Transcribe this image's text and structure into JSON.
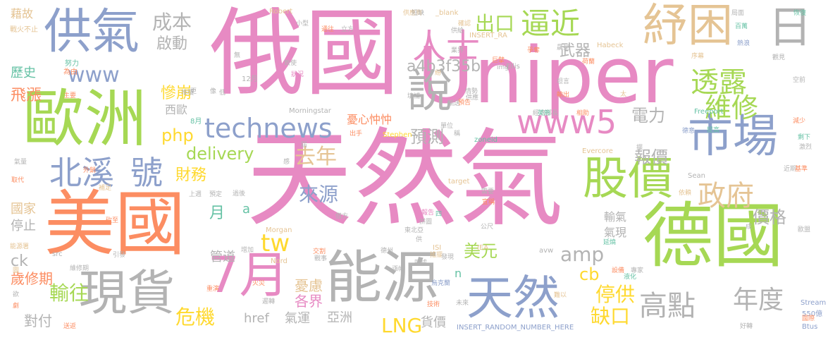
{
  "palette": {
    "pink": "#e78ac3",
    "green": "#a6d854",
    "blue": "#8da0cb",
    "orange": "#fc8d62",
    "teal": "#66c2a5",
    "gray": "#b3b3b3",
    "yellow": "#ffd92f",
    "tan": "#e5c494"
  },
  "words": [
    {
      "text": "天然氣",
      "color": "pink"
    },
    {
      "text": "俄國",
      "color": "pink"
    },
    {
      "text": "Uniper",
      "color": "pink"
    },
    {
      "text": "美國",
      "color": "orange"
    },
    {
      "text": "德國",
      "color": "green"
    },
    {
      "text": "歐洲",
      "color": "green"
    },
    {
      "text": "供氣",
      "color": "blue"
    },
    {
      "text": "能源",
      "color": "gray"
    },
    {
      "text": "現貨",
      "color": "gray"
    },
    {
      "text": "紓困",
      "color": "tan"
    },
    {
      "text": "天然",
      "color": "blue"
    },
    {
      "text": "市場",
      "color": "blue"
    },
    {
      "text": "股價",
      "color": "green"
    },
    {
      "text": "7月",
      "color": "pink"
    },
    {
      "text": "日",
      "color": "gray"
    },
    {
      "text": "說",
      "color": "gray"
    },
    {
      "text": "北溪",
      "color": "blue"
    },
    {
      "text": "號",
      "color": "blue"
    },
    {
      "text": "www5",
      "color": "pink"
    },
    {
      "text": "technews",
      "color": "blue"
    },
    {
      "text": "www",
      "color": "blue"
    },
    {
      "text": "逼近",
      "color": "green"
    },
    {
      "text": "人士",
      "color": "pink"
    },
    {
      "text": "出口",
      "color": "green"
    },
    {
      "text": "政府",
      "color": "tan"
    },
    {
      "text": "高點",
      "color": "gray"
    },
    {
      "text": "年度",
      "color": "gray"
    },
    {
      "text": "維修",
      "color": "green"
    },
    {
      "text": "透露",
      "color": "green"
    },
    {
      "text": "成本",
      "color": "gray"
    },
    {
      "text": "去年",
      "color": "tan"
    },
    {
      "text": "來源",
      "color": "blue"
    },
    {
      "text": "delivery",
      "color": "green"
    },
    {
      "text": "tw",
      "color": "yellow"
    },
    {
      "text": "amp",
      "color": "gray"
    },
    {
      "text": "LNG",
      "color": "yellow"
    },
    {
      "text": "php",
      "color": "yellow"
    },
    {
      "text": "a4b3f35b",
      "color": "gray"
    },
    {
      "text": "停供",
      "color": "yellow"
    },
    {
      "text": "缺口",
      "color": "yellow"
    },
    {
      "text": "輸往",
      "color": "green"
    },
    {
      "text": "危機",
      "color": "yellow"
    },
    {
      "text": "價格",
      "color": "gray"
    },
    {
      "text": "報價",
      "color": "gray"
    },
    {
      "text": "電力",
      "color": "gray"
    },
    {
      "text": "預測",
      "color": "gray"
    },
    {
      "text": "美元",
      "color": "green"
    },
    {
      "text": "財務",
      "color": "yellow"
    },
    {
      "text": "慘崩",
      "color": "yellow"
    },
    {
      "text": "武器",
      "color": "gray"
    },
    {
      "text": "啟動",
      "color": "gray"
    },
    {
      "text": "飛漲",
      "color": "orange"
    },
    {
      "text": "歷史",
      "color": "teal"
    },
    {
      "text": "藉故",
      "color": "tan"
    },
    {
      "text": "cb",
      "color": "yellow"
    },
    {
      "text": "ck",
      "color": "gray"
    },
    {
      "text": "歲修期",
      "color": "orange"
    },
    {
      "text": "對付",
      "color": "gray"
    },
    {
      "text": "各界",
      "color": "pink"
    },
    {
      "text": "憂慮",
      "color": "tan"
    },
    {
      "text": "管道",
      "color": "gray"
    },
    {
      "text": "月",
      "color": "teal"
    },
    {
      "text": "a",
      "color": "teal"
    },
    {
      "text": "氣運",
      "color": "gray"
    },
    {
      "text": "亞洲",
      "color": "gray"
    },
    {
      "text": "貨價",
      "color": "gray"
    },
    {
      "text": "href",
      "color": "gray"
    },
    {
      "text": "停止",
      "color": "gray"
    },
    {
      "text": "國家",
      "color": "tan"
    },
    {
      "text": "西歐",
      "color": "gray"
    },
    {
      "text": "憂心忡忡",
      "color": "orange"
    },
    {
      "text": "輸氣",
      "color": "gray"
    },
    {
      "text": "氣現",
      "color": "gray"
    },
    {
      "text": "n",
      "color": "teal"
    },
    {
      "text": "戰火不止",
      "color": "tan"
    },
    {
      "text": "Robert",
      "color": "tan"
    },
    {
      "text": "_blank",
      "color": "tan"
    },
    {
      "text": "INSERT_RA",
      "color": "tan"
    },
    {
      "text": "Habeck",
      "color": "tan"
    },
    {
      "text": "Morningstar",
      "color": "gray"
    },
    {
      "text": "Freeport",
      "color": "teal"
    },
    {
      "text": "Stephen",
      "color": "yellow"
    },
    {
      "text": "zoneid",
      "color": "teal"
    },
    {
      "text": "Evercore",
      "color": "tan"
    },
    {
      "text": "Sean",
      "color": "gray"
    },
    {
      "text": "target",
      "color": "tan"
    },
    {
      "text": "Morgan",
      "color": "tan"
    },
    {
      "text": "Nord",
      "color": "tan"
    },
    {
      "text": "src",
      "color": "gray"
    },
    {
      "text": "IEA",
      "color": "tan"
    },
    {
      "text": "ISI",
      "color": "tan"
    },
    {
      "text": "avw",
      "color": "gray"
    },
    {
      "text": "Ellis",
      "color": "gray"
    },
    {
      "text": "INSERT_RANDOM_NUMBER_HERE",
      "color": "blue"
    },
    {
      "text": "Stream",
      "color": "blue"
    },
    {
      "text": "550億",
      "color": "blue"
    },
    {
      "text": "Btus",
      "color": "blue"
    },
    {
      "text": "國際",
      "color": "orange"
    },
    {
      "text": "12月",
      "color": "gray"
    },
    {
      "text": "8月",
      "color": "teal"
    },
    {
      "text": "努力",
      "color": "teal"
    },
    {
      "text": "為由",
      "color": "orange"
    },
    {
      "text": "主要",
      "color": "orange"
    },
    {
      "text": "外銷",
      "color": "orange"
    },
    {
      "text": "取代",
      "color": "orange"
    },
    {
      "text": "補足",
      "color": "tan"
    },
    {
      "text": "上週",
      "color": "gray"
    },
    {
      "text": "預定",
      "color": "gray"
    },
    {
      "text": "過後",
      "color": "gray"
    },
    {
      "text": "砍至",
      "color": "orange"
    },
    {
      "text": "引發",
      "color": "gray"
    },
    {
      "text": "能源署",
      "color": "tan"
    },
    {
      "text": "維修期",
      "color": "gray"
    },
    {
      "text": "送返",
      "color": "orange"
    },
    {
      "text": "增加",
      "color": "gray"
    },
    {
      "text": "戰事",
      "color": "gray"
    },
    {
      "text": "火災",
      "color": "orange"
    },
    {
      "text": "重演",
      "color": "orange"
    },
    {
      "text": "遲轉",
      "color": "gray"
    },
    {
      "text": "德州",
      "color": "gray"
    },
    {
      "text": "四成",
      "color": "gray"
    },
    {
      "text": "烏克蘭",
      "color": "blue"
    },
    {
      "text": "技術",
      "color": "orange"
    },
    {
      "text": "未來",
      "color": "gray"
    },
    {
      "text": "交割",
      "color": "orange"
    },
    {
      "text": "漲幅",
      "color": "gray"
    },
    {
      "text": "需要",
      "color": "gray"
    },
    {
      "text": "宣稱",
      "color": "orange"
    },
    {
      "text": "報告",
      "color": "pink"
    },
    {
      "text": "拼圖",
      "color": "gray"
    },
    {
      "text": "東北亞",
      "color": "gray"
    },
    {
      "text": "供給",
      "color": "gray"
    },
    {
      "text": "業界",
      "color": "gray"
    },
    {
      "text": "巨擘",
      "color": "orange"
    },
    {
      "text": "荷蘭",
      "color": "orange"
    },
    {
      "text": "經濟部長",
      "color": "gray"
    },
    {
      "text": "晨星",
      "color": "gray"
    },
    {
      "text": "相助",
      "color": "orange"
    },
    {
      "text": "提高",
      "color": "teal"
    },
    {
      "text": "德意",
      "color": "blue"
    },
    {
      "text": "減少",
      "color": "orange"
    },
    {
      "text": "剩下",
      "color": "teal"
    },
    {
      "text": "激烈",
      "color": "gray"
    },
    {
      "text": "近期",
      "color": "gray"
    },
    {
      "text": "基準",
      "color": "orange"
    },
    {
      "text": "依賴",
      "color": "tan"
    },
    {
      "text": "延燒",
      "color": "teal"
    },
    {
      "text": "設備",
      "color": "orange"
    },
    {
      "text": "液化",
      "color": "teal"
    },
    {
      "text": "專家",
      "color": "gray"
    },
    {
      "text": "局面",
      "color": "gray"
    },
    {
      "text": "百萬",
      "color": "teal"
    },
    {
      "text": "熱浪",
      "color": "blue"
    },
    {
      "text": "序幕",
      "color": "tan"
    },
    {
      "text": "恢復",
      "color": "teal"
    },
    {
      "text": "歐盟",
      "color": "gray"
    },
    {
      "text": "供應商",
      "color": "tan"
    },
    {
      "text": "小型",
      "color": "gray"
    },
    {
      "text": "立方",
      "color": "gray"
    },
    {
      "text": "通往",
      "color": "orange"
    },
    {
      "text": "輸送",
      "color": "gray"
    },
    {
      "text": "出手",
      "color": "orange"
    },
    {
      "text": "單位",
      "color": "gray"
    },
    {
      "text": "英熱",
      "color": "teal"
    },
    {
      "text": "公尺",
      "color": "gray"
    },
    {
      "text": "成",
      "color": "gray"
    },
    {
      "text": "供",
      "color": "gray"
    },
    {
      "text": "四",
      "color": "teal"
    },
    {
      "text": "低",
      "color": "gray"
    },
    {
      "text": "狀況",
      "color": "pink"
    },
    {
      "text": "無",
      "color": "gray"
    },
    {
      "text": "致使",
      "color": "gray"
    },
    {
      "text": "堆積",
      "color": "gray"
    },
    {
      "text": "預告",
      "color": "orange"
    },
    {
      "text": "難以",
      "color": "tan"
    },
    {
      "text": "好轉",
      "color": "gray"
    },
    {
      "text": "輸出",
      "color": "orange"
    },
    {
      "text": "坦言",
      "color": "gray"
    },
    {
      "text": "擺",
      "color": "gray"
    },
    {
      "text": "情勢",
      "color": "gray"
    },
    {
      "text": "空前",
      "color": "gray"
    },
    {
      "text": "劇",
      "color": "orange"
    },
    {
      "text": "欲",
      "color": "gray"
    },
    {
      "text": "圖",
      "color": "tan"
    },
    {
      "text": "氣量",
      "color": "gray"
    },
    {
      "text": "屆",
      "color": "gray"
    },
    {
      "text": "搖擺",
      "color": "tan"
    },
    {
      "text": "太",
      "color": "tan"
    },
    {
      "text": "填補",
      "color": "gray"
    },
    {
      "text": "觀見",
      "color": "gray"
    },
    {
      "text": "供應",
      "color": "gray"
    },
    {
      "text": "爭奪",
      "color": "orange"
    },
    {
      "text": "短缺",
      "color": "gray"
    },
    {
      "text": "紛",
      "color": "tan"
    },
    {
      "text": "稱",
      "color": "gray"
    },
    {
      "text": "確認",
      "color": "tan"
    },
    {
      "text": "感",
      "color": "gray"
    },
    {
      "text": "更",
      "color": "gray"
    },
    {
      "text": "像",
      "color": "gray"
    },
    {
      "text": "發現",
      "color": "gray"
    },
    {
      "text": "借方",
      "color": "gray"
    },
    {
      "text": "img",
      "color": "gray"
    }
  ]
}
